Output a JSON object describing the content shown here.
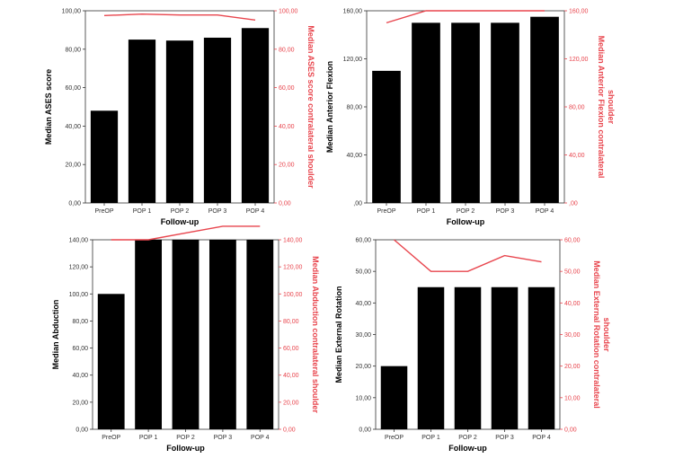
{
  "colors": {
    "bar": "#000000",
    "line": "#e8454d",
    "axis": "#333333"
  },
  "chart_data": [
    {
      "type": "bar",
      "categories": [
        "PreOP",
        "POP 1",
        "POP 2",
        "POP 3",
        "POP 4"
      ],
      "series": [
        {
          "name": "Median ASES score",
          "kind": "bar",
          "axis": "left",
          "values": [
            48,
            85,
            84.5,
            86,
            91
          ]
        },
        {
          "name": "Median ASES score contralateral shoulder",
          "kind": "line",
          "axis": "right",
          "values": [
            97.5,
            98.3,
            97.8,
            97.8,
            95.2
          ]
        }
      ],
      "xlabel": "Follow-up",
      "ylabel": "Median ASES score",
      "y2label": "Median ASES score contralateral shoulder",
      "ylim": [
        0,
        100
      ],
      "yticks": [
        "0,00",
        "20,00",
        "40,00",
        "60,00",
        "80,00",
        "100,00"
      ],
      "y2ticks": [
        "0,00",
        "20,00",
        "40,00",
        "60,00",
        "80,00",
        "100,00"
      ]
    },
    {
      "type": "bar",
      "categories": [
        "PreOP",
        "POP 1",
        "POP 2",
        "POP 3",
        "POP 4"
      ],
      "series": [
        {
          "name": "Median Anterior Flexion",
          "kind": "bar",
          "axis": "left",
          "values": [
            110,
            150,
            150,
            150,
            155
          ]
        },
        {
          "name": "Median Anterior Flexion contralateral shoulder",
          "kind": "line",
          "axis": "right",
          "values": [
            150,
            160,
            160,
            160,
            160
          ]
        }
      ],
      "xlabel": "Follow-up",
      "ylabel": "Median Anterior Flexion",
      "y2label": [
        "Median Anterior Flexion contralateral",
        "shoulder"
      ],
      "ylim": [
        0,
        160
      ],
      "yticks": [
        ",00",
        "40,00",
        "80,00",
        "120,00",
        "160,00"
      ],
      "y2ticks": [
        ",00",
        "40,00",
        "80,00",
        "120,00",
        "160,00"
      ]
    },
    {
      "type": "bar",
      "categories": [
        "PreOP",
        "POP 1",
        "POP 2",
        "POP 3",
        "POP 4"
      ],
      "series": [
        {
          "name": "Median Abduction",
          "kind": "bar",
          "axis": "left",
          "values": [
            100,
            140,
            140,
            140,
            140
          ]
        },
        {
          "name": "Median Abduction contralateral shoulder",
          "kind": "line",
          "axis": "right",
          "values": [
            140,
            140,
            145,
            150,
            150
          ]
        }
      ],
      "xlabel": "Follow-up",
      "ylabel": "Median Abduction",
      "y2label": "Median Abduction contralateral shoulder",
      "ylim": [
        0,
        140
      ],
      "yticks": [
        "0,00",
        "20,00",
        "40,00",
        "60,00",
        "80,00",
        "100,00",
        "120,00",
        "140,00"
      ],
      "y2ticks": [
        "0,00",
        "20,00",
        "40,00",
        "60,00",
        "80,00",
        "100,00",
        "120,00",
        "140,00"
      ]
    },
    {
      "type": "bar",
      "categories": [
        "PreOP",
        "POP 1",
        "POP 2",
        "POP 3",
        "POP 4"
      ],
      "series": [
        {
          "name": "Median External Rotation",
          "kind": "bar",
          "axis": "left",
          "values": [
            20,
            45,
            45,
            45,
            45
          ]
        },
        {
          "name": "Median External Rotation contralateral shoulder",
          "kind": "line",
          "axis": "right",
          "values": [
            60,
            50,
            50,
            55,
            53
          ]
        }
      ],
      "xlabel": "Follow-up",
      "ylabel": "Median External Rotation",
      "y2label": [
        "Median External Rotation contralateral",
        "shoulder"
      ],
      "ylim": [
        0,
        60
      ],
      "yticks": [
        "0,00",
        "10,00",
        "20,00",
        "30,00",
        "40,00",
        "50,00",
        "60,00"
      ],
      "y2ticks": [
        "0,00",
        "10,00",
        "20,00",
        "30,00",
        "40,00",
        "50,00",
        "60,00"
      ]
    }
  ]
}
